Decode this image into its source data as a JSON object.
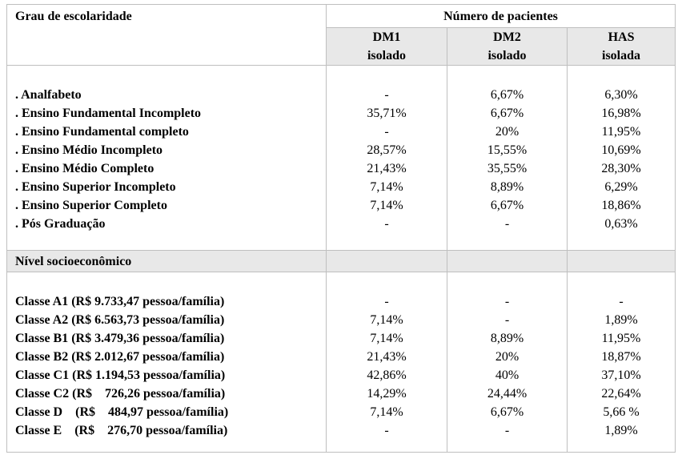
{
  "header": {
    "col1": "Grau de escolaridade",
    "group": "Número de pacientes",
    "dm1_line1": "DM1",
    "dm1_line2": "isolado",
    "dm2_line1": "DM2",
    "dm2_line2": "isolado",
    "has_line1": "HAS",
    "has_line2": "isolada"
  },
  "education": [
    {
      "label": ". Analfabeto",
      "dm1": "-",
      "dm2": "6,67%",
      "has": "6,30%"
    },
    {
      "label": ". Ensino Fundamental Incompleto",
      "dm1": "35,71%",
      "dm2": "6,67%",
      "has": "16,98%"
    },
    {
      "label": ". Ensino Fundamental completo",
      "dm1": "-",
      "dm2": "20%",
      "has": "11,95%"
    },
    {
      "label": ". Ensino Médio Incompleto",
      "dm1": "28,57%",
      "dm2": "15,55%",
      "has": "10,69%"
    },
    {
      "label": ". Ensino Médio Completo",
      "dm1": "21,43%",
      "dm2": "35,55%",
      "has": "28,30%"
    },
    {
      "label": ". Ensino Superior Incompleto",
      "dm1": "7,14%",
      "dm2": "8,89%",
      "has": "6,29%"
    },
    {
      "label": ". Ensino Superior Completo",
      "dm1": "7,14%",
      "dm2": "6,67%",
      "has": "18,86%"
    },
    {
      "label": ". Pós Graduação",
      "dm1": "-",
      "dm2": "-",
      "has": "0,63%"
    }
  ],
  "socio_header": "Nível socioeconômico",
  "socio": [
    {
      "label": "Classe A1 (R$ 9.733,47 pessoa/família)",
      "dm1": "-",
      "dm2": "-",
      "has": "-"
    },
    {
      "label": "Classe A2 (R$ 6.563,73 pessoa/família)",
      "dm1": "7,14%",
      "dm2": "-",
      "has": "1,89%"
    },
    {
      "label": "Classe B1 (R$ 3.479,36 pessoa/família)",
      "dm1": "7,14%",
      "dm2": "8,89%",
      "has": "11,95%"
    },
    {
      "label": "Classe B2 (R$ 2.012,67 pessoa/família)",
      "dm1": "21,43%",
      "dm2": "20%",
      "has": "18,87%"
    },
    {
      "label": "Classe C1 (R$ 1.194,53 pessoa/família)",
      "dm1": "42,86%",
      "dm2": "40%",
      "has": "37,10%"
    },
    {
      "label": "Classe C2 (R$    726,26 pessoa/família)",
      "dm1": "14,29%",
      "dm2": "24,44%",
      "has": "22,64%"
    },
    {
      "label": "Classe D    (R$    484,97 pessoa/família)",
      "dm1": "7,14%",
      "dm2": "6,67%",
      "has": "5,66 %"
    },
    {
      "label": "Classe E    (R$    276,70 pessoa/família)",
      "dm1": "-",
      "dm2": "-",
      "has": "1,89%"
    }
  ]
}
